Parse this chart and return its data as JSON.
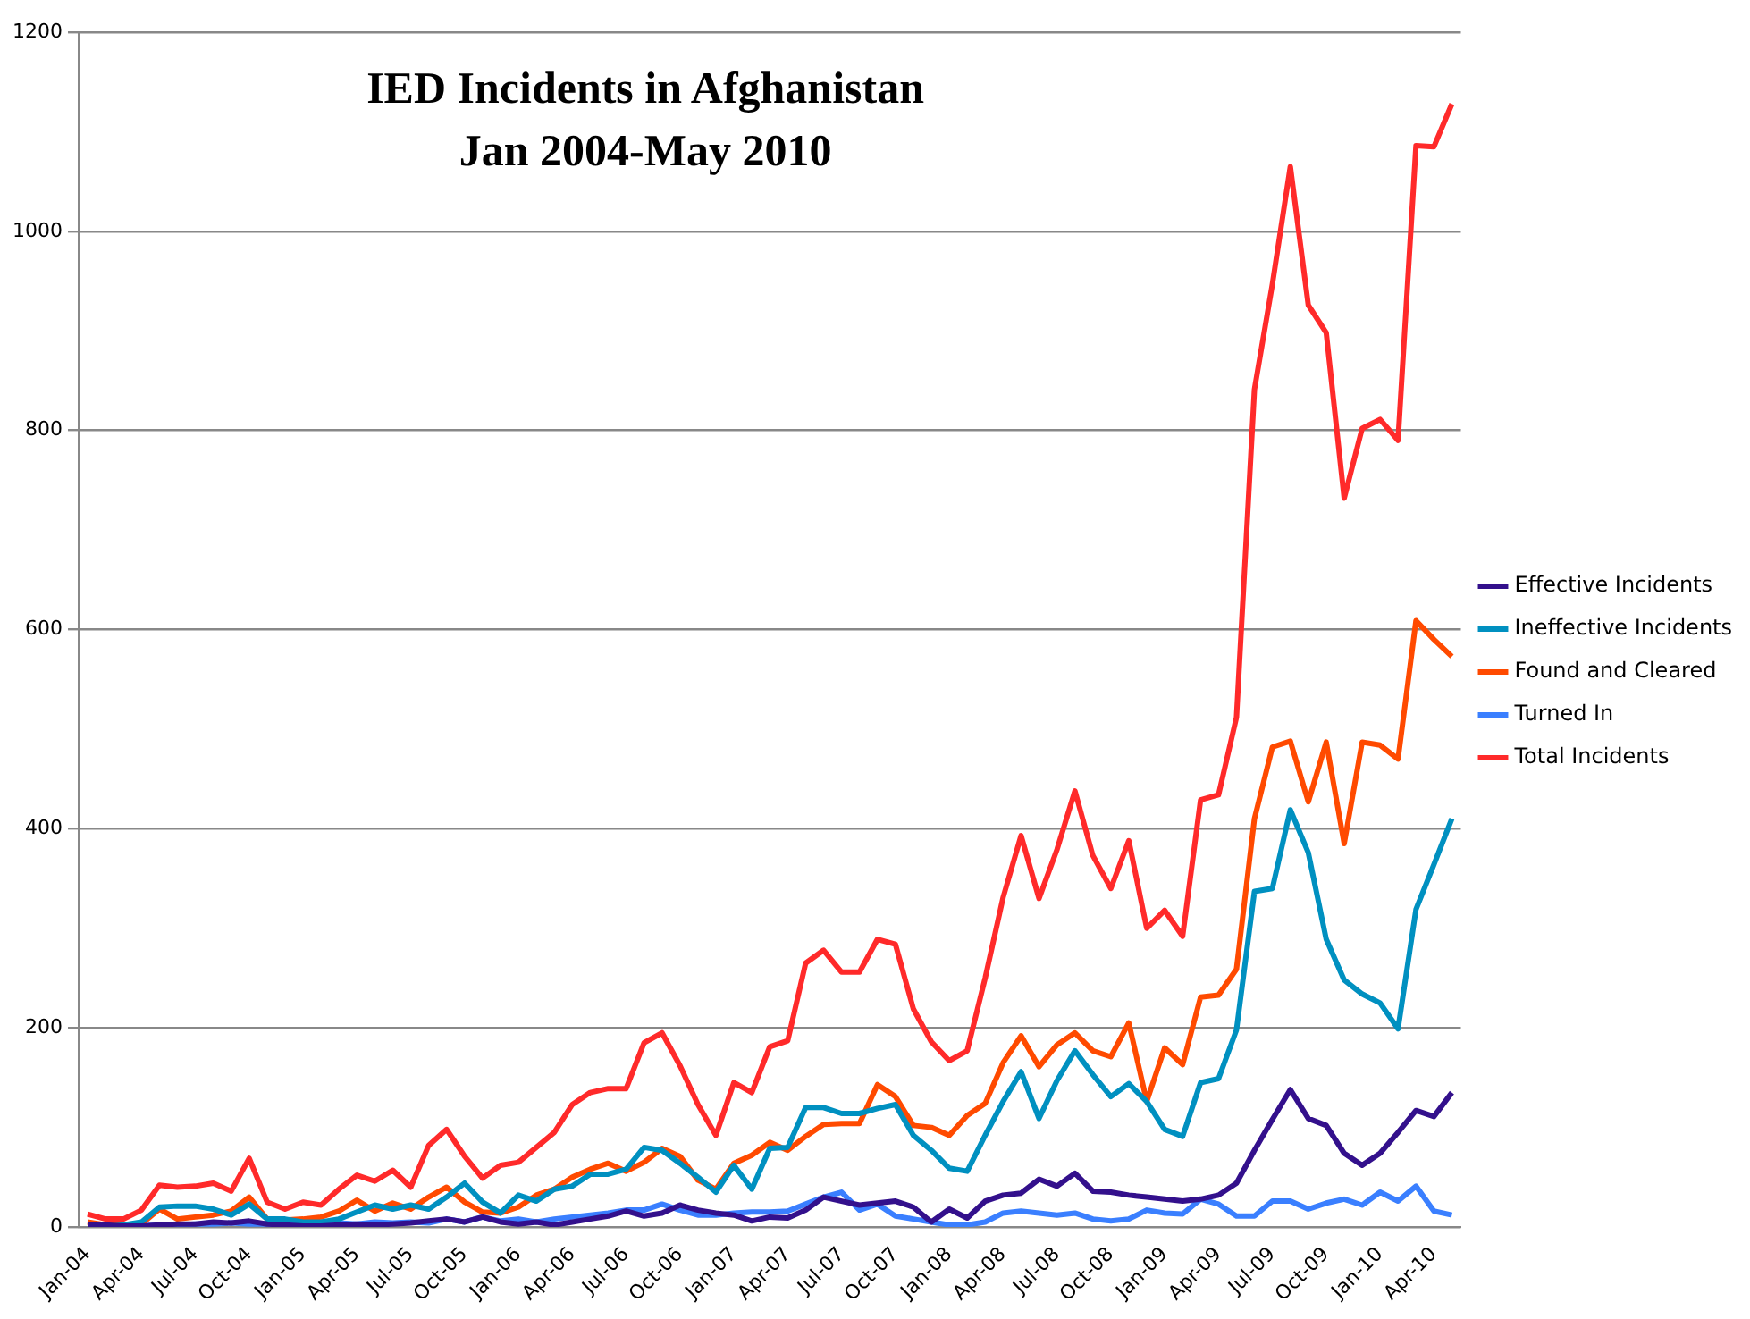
{
  "chart_data": {
    "type": "line",
    "title": "IED Incidents in Afghanistan",
    "subtitle": "Jan 2004-May 2010",
    "categories": [
      "Jan-04",
      null,
      null,
      "Apr-04",
      null,
      null,
      "Jul-04",
      null,
      null,
      "Oct-04",
      null,
      null,
      "Jan-05",
      null,
      null,
      "Apr-05",
      null,
      null,
      "Jul-05",
      null,
      null,
      "Oct-05",
      null,
      null,
      "Jan-06",
      null,
      null,
      "Apr-06",
      null,
      null,
      "Jul-06",
      null,
      null,
      "Oct-06",
      null,
      null,
      "Jan-07",
      null,
      null,
      "Apr-07",
      null,
      null,
      "Jul-07",
      null,
      null,
      "Oct-07",
      null,
      null,
      "Jan-08",
      null,
      null,
      "Apr-08",
      null,
      null,
      "Jul-08",
      null,
      null,
      "Oct-08",
      null,
      null,
      "Jan-09",
      null,
      null,
      "Apr-09",
      null,
      null,
      "Jul-09",
      null,
      null,
      "Oct-09",
      null,
      null,
      "Jan-10",
      null,
      null,
      "Apr-10",
      null
    ],
    "series": [
      {
        "name": "Effective Incidents",
        "color": "#33108c",
        "values": [
          2,
          2,
          1,
          1,
          2,
          3,
          3,
          5,
          4,
          6,
          3,
          2,
          1,
          1,
          2,
          3,
          2,
          3,
          4,
          6,
          8,
          5,
          10,
          5,
          3,
          5,
          2,
          5,
          8,
          11,
          16,
          11,
          14,
          22,
          17,
          14,
          12,
          6,
          10,
          9,
          17,
          30,
          26,
          22,
          24,
          26,
          20,
          5,
          18,
          9,
          26,
          32,
          34,
          48,
          41,
          54,
          36,
          35,
          32,
          30,
          28,
          26,
          28,
          32,
          44,
          77,
          108,
          138,
          109,
          102,
          74,
          62,
          74,
          95,
          117,
          111,
          135
        ]
      },
      {
        "name": "Ineffective Incidents",
        "color": "#0090c0",
        "values": [
          0,
          0,
          2,
          5,
          20,
          21,
          21,
          18,
          12,
          23,
          8,
          8,
          5,
          5,
          8,
          15,
          22,
          18,
          22,
          18,
          30,
          44,
          25,
          14,
          32,
          26,
          38,
          41,
          53,
          53,
          58,
          80,
          77,
          64,
          50,
          35,
          62,
          38,
          79,
          80,
          120,
          120,
          114,
          114,
          119,
          123,
          92,
          77,
          59,
          56,
          92,
          126,
          156,
          109,
          147,
          177,
          153,
          131,
          144,
          126,
          98,
          91,
          145,
          149,
          198,
          337,
          340,
          419,
          376,
          289,
          248,
          234,
          225,
          199,
          319,
          364,
          410
        ]
      },
      {
        "name": "Found and Cleared",
        "color": "#ff4a00",
        "values": [
          5,
          2,
          2,
          3,
          18,
          8,
          10,
          12,
          16,
          30,
          8,
          7,
          8,
          10,
          16,
          27,
          16,
          24,
          18,
          30,
          40,
          25,
          15,
          14,
          20,
          32,
          38,
          50,
          58,
          64,
          56,
          65,
          79,
          71,
          47,
          38,
          64,
          72,
          85,
          77,
          91,
          103,
          104,
          104,
          143,
          131,
          102,
          100,
          92,
          112,
          124,
          165,
          192,
          161,
          183,
          195,
          177,
          171,
          205,
          126,
          180,
          163,
          231,
          233,
          259,
          410,
          482,
          488,
          427,
          487,
          385,
          487,
          484,
          470,
          609,
          590,
          573
        ]
      },
      {
        "name": "Turned In",
        "color": "#3a7fff",
        "values": [
          0,
          0,
          0,
          1,
          2,
          2,
          3,
          3,
          4,
          3,
          3,
          2,
          2,
          3,
          4,
          3,
          5,
          4,
          5,
          4,
          8,
          5,
          10,
          6,
          8,
          5,
          8,
          10,
          12,
          14,
          17,
          17,
          23,
          17,
          12,
          12,
          14,
          15,
          15,
          16,
          23,
          30,
          35,
          17,
          23,
          11,
          8,
          5,
          2,
          2,
          5,
          14,
          16,
          14,
          12,
          14,
          8,
          6,
          8,
          17,
          14,
          13,
          28,
          23,
          11,
          11,
          26,
          26,
          18,
          24,
          28,
          22,
          35,
          26,
          41,
          16,
          12
        ]
      },
      {
        "name": "Total Incidents",
        "color": "#ff2a2a",
        "values": [
          13,
          8,
          8,
          17,
          42,
          40,
          41,
          44,
          36,
          69,
          25,
          18,
          25,
          22,
          38,
          52,
          46,
          57,
          40,
          82,
          98,
          71,
          49,
          62,
          65,
          80,
          95,
          123,
          135,
          139,
          139,
          185,
          195,
          162,
          123,
          92,
          145,
          135,
          181,
          187,
          265,
          278,
          256,
          256,
          289,
          284,
          219,
          186,
          167,
          177,
          250,
          331,
          393,
          330,
          379,
          438,
          373,
          340,
          388,
          300,
          318,
          292,
          429,
          434,
          512,
          841,
          947,
          1065,
          926,
          898,
          732,
          802,
          811,
          790,
          1086,
          1085,
          1128
        ]
      }
    ],
    "ylim": [
      0,
      1200
    ],
    "yticks": [
      0,
      200,
      400,
      600,
      800,
      1000,
      1200
    ],
    "grid": "y",
    "legend": "right",
    "marker": "none",
    "line_style": "solid"
  }
}
